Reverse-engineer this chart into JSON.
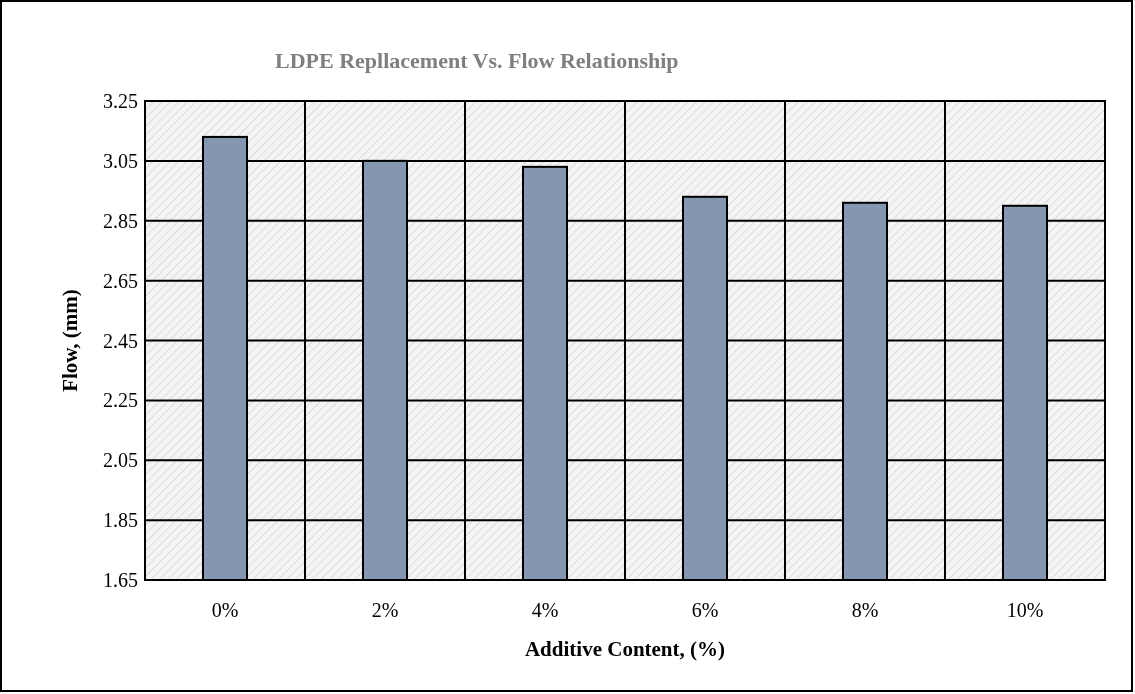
{
  "chart_data": {
    "type": "bar",
    "title": "LDPE Repllacement Vs. Flow Relationship",
    "xlabel": "Additive Content, (%)",
    "ylabel": "Flow, (mm)",
    "categories": [
      "0%",
      "2%",
      "4%",
      "6%",
      "8%",
      "10%"
    ],
    "values": [
      3.13,
      3.05,
      3.03,
      2.93,
      2.91,
      2.9
    ],
    "color": "#8496b0",
    "ylim": [
      1.65,
      3.25
    ],
    "yticks": [
      {
        "value": 1.65,
        "label": "1.65"
      },
      {
        "value": 1.85,
        "label": "1.85"
      },
      {
        "value": 2.05,
        "label": "2.05"
      },
      {
        "value": 2.25,
        "label": "2.25"
      },
      {
        "value": 2.45,
        "label": "2.45"
      },
      {
        "value": 2.65,
        "label": "2.65"
      },
      {
        "value": 2.85,
        "label": "2.85"
      },
      {
        "value": 3.05,
        "label": "3.05"
      },
      {
        "value": 3.25,
        "label": "3.25"
      }
    ],
    "grid": true
  }
}
